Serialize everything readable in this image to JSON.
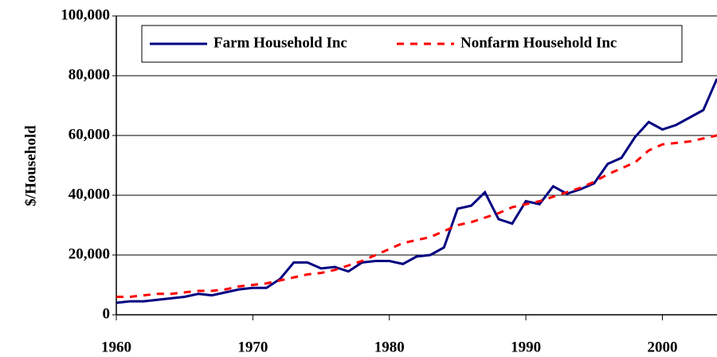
{
  "chart_data": {
    "type": "line",
    "ylabel": "$/Household",
    "x": [
      1960,
      1961,
      1962,
      1963,
      1964,
      1965,
      1966,
      1967,
      1968,
      1969,
      1970,
      1971,
      1972,
      1973,
      1974,
      1975,
      1976,
      1977,
      1978,
      1979,
      1980,
      1981,
      1982,
      1983,
      1984,
      1985,
      1986,
      1987,
      1988,
      1989,
      1990,
      1991,
      1992,
      1993,
      1994,
      1995,
      1996,
      1997,
      1998,
      1999,
      2000,
      2001,
      2002,
      2003,
      2004
    ],
    "series": [
      {
        "name": "Farm  Household Inc",
        "color": "#000080",
        "dash": false,
        "values": [
          4000,
          4500,
          4500,
          5000,
          5500,
          6000,
          7000,
          6500,
          7500,
          8500,
          9000,
          9000,
          12000,
          17500,
          17500,
          15500,
          16000,
          14500,
          17500,
          18000,
          18000,
          17000,
          19500,
          20000,
          22500,
          35500,
          36500,
          41000,
          32000,
          30500,
          38000,
          37000,
          43000,
          40500,
          42000,
          44000,
          50500,
          52500,
          59500,
          64500,
          62000,
          63500,
          66000,
          68500,
          79000
        ]
      },
      {
        "name": "Nonfarm  Household Inc",
        "color": "#ff0000",
        "dash": true,
        "values": [
          6000,
          6000,
          6500,
          7000,
          7000,
          7500,
          8000,
          8000,
          8500,
          9500,
          10000,
          10500,
          11500,
          12500,
          13500,
          14000,
          15000,
          16500,
          18000,
          20000,
          22000,
          24000,
          25000,
          26000,
          28000,
          30000,
          31000,
          32500,
          34000,
          36000,
          37000,
          38000,
          39500,
          41000,
          42500,
          44500,
          47000,
          49000,
          51000,
          55000,
          57000,
          57500,
          58000,
          59000,
          60000
        ]
      }
    ],
    "xlim": [
      1960,
      2004
    ],
    "xticks": [
      1960,
      1970,
      1980,
      1990,
      2000
    ],
    "ylim": [
      0,
      100000
    ],
    "yticks": [
      {
        "value": 0,
        "label": "0"
      },
      {
        "value": 20000,
        "label": "20,000"
      },
      {
        "value": 40000,
        "label": "40,000"
      },
      {
        "value": 60000,
        "label": "60,000"
      },
      {
        "value": 80000,
        "label": "80,000"
      },
      {
        "value": 100000,
        "label": "100,000"
      }
    ],
    "grid": true,
    "legend": "top"
  }
}
